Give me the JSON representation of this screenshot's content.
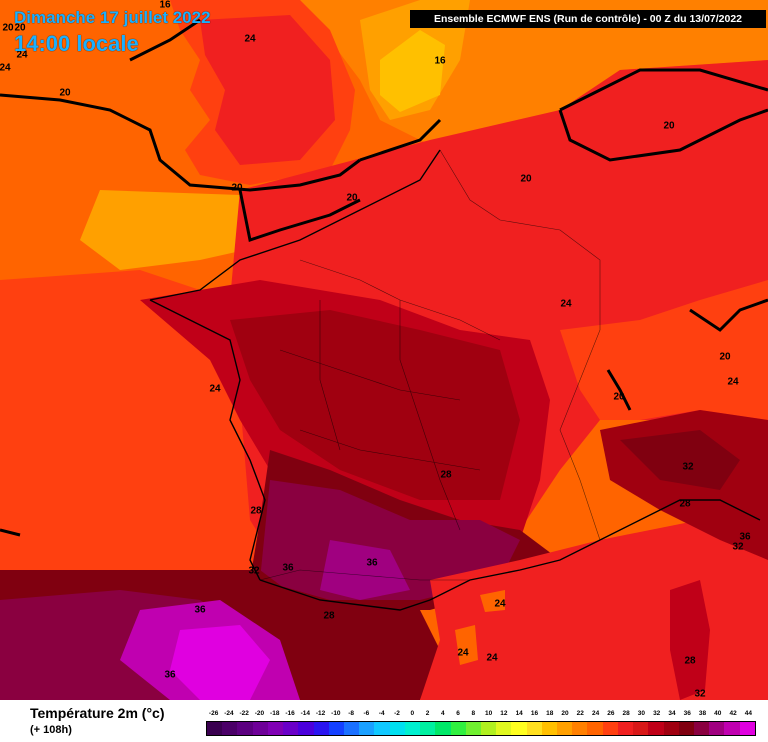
{
  "header": {
    "date_line": "Dimanche 17 juillet 2022",
    "time_line": "14:00 locale",
    "model_run": "Ensemble ECMWF ENS  (Run de contrôle)  -  00 Z du 13/07/2022"
  },
  "legend": {
    "title": "Température 2m (°c)",
    "subtitle": "(+ 108h)",
    "ticks": [
      "-26",
      "-24",
      "-22",
      "-20",
      "-18",
      "-16",
      "-14",
      "-12",
      "-10",
      "-8",
      "-6",
      "-4",
      "-2",
      "0",
      "2",
      "4",
      "6",
      "8",
      "10",
      "12",
      "14",
      "16",
      "18",
      "20",
      "22",
      "24",
      "26",
      "28",
      "30",
      "32",
      "34",
      "36",
      "38",
      "40",
      "42",
      "44"
    ],
    "colors": [
      "#3a0050",
      "#4b0068",
      "#5c0080",
      "#6e0098",
      "#8000b4",
      "#6a00c8",
      "#4b00dc",
      "#2a14f0",
      "#1440ff",
      "#1a70ff",
      "#1aa0ff",
      "#10c8ff",
      "#00e0f0",
      "#00f0d0",
      "#00f0a0",
      "#00e868",
      "#30f040",
      "#70f030",
      "#b0f020",
      "#e0f820",
      "#ffff20",
      "#ffe020",
      "#ffc000",
      "#ffa000",
      "#ff8000",
      "#ff6400",
      "#ff4010",
      "#f02020",
      "#d81818",
      "#c00018",
      "#a00010",
      "#800010",
      "#8a0040",
      "#a00080",
      "#c000b0",
      "#e000e0"
    ]
  },
  "map": {
    "isotherm_labels": [
      {
        "text": "16"
      },
      {
        "text": "24"
      },
      {
        "text": "20"
      },
      {
        "text": "24"
      },
      {
        "text": "20"
      },
      {
        "text": "24"
      },
      {
        "text": "20"
      },
      {
        "text": "16"
      },
      {
        "text": "20"
      },
      {
        "text": "20"
      },
      {
        "text": "20"
      },
      {
        "text": "24"
      },
      {
        "text": "20"
      },
      {
        "text": "24"
      },
      {
        "text": "20"
      },
      {
        "text": "24"
      },
      {
        "text": "32"
      },
      {
        "text": "28"
      },
      {
        "text": "28"
      },
      {
        "text": "36"
      },
      {
        "text": "32"
      },
      {
        "text": "20"
      },
      {
        "text": "28"
      },
      {
        "text": "32"
      },
      {
        "text": "36"
      },
      {
        "text": "36"
      },
      {
        "text": "36"
      },
      {
        "text": "28"
      },
      {
        "text": "24"
      },
      {
        "text": "24"
      },
      {
        "text": "24"
      },
      {
        "text": "36"
      },
      {
        "text": "28"
      },
      {
        "text": "32"
      }
    ]
  }
}
